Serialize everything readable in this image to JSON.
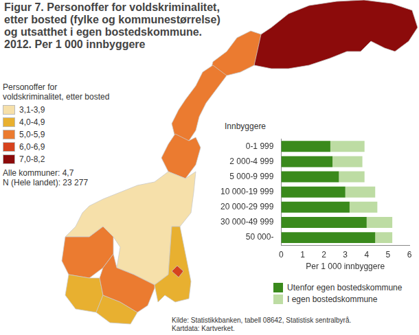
{
  "chart_data": {
    "type": "bar",
    "orientation": "horizontal",
    "stacked": true,
    "title": "Figur 7. Personoffer for voldskriminalitet,\netter bosted (fylke og kommunestørrelse)\nog utsatthet i egen bostedskommune.\n2012. Per 1 000 innbyggere",
    "y_label": "Innbyggere",
    "x_label": "Per 1 000 innbyggere",
    "categories": [
      "0-1 999",
      "2 000-4 999",
      "5 000-9 999",
      "10 000-19 999",
      "20 000-29 999",
      "30 000-49 999",
      "50 000-"
    ],
    "series": [
      {
        "name": "Utenfor egen bostedskommune",
        "color": "#3a8a1c",
        "values": [
          2.3,
          2.4,
          2.7,
          3.0,
          3.2,
          4.0,
          4.4
        ]
      },
      {
        "name": "I egen bostedskommune",
        "color": "#bddca3",
        "values": [
          1.6,
          1.4,
          1.2,
          1.4,
          1.3,
          1.2,
          0.8
        ]
      }
    ],
    "xlim": [
      0,
      6
    ],
    "xticks": [
      0,
      1,
      2,
      3,
      4,
      5,
      6
    ],
    "grid": false,
    "legend": "bottom"
  },
  "map": {
    "legend_title": "Personoffer for voldskriminalitet, etter bosted",
    "classes": [
      {
        "label": "3,1-3,9",
        "color": "#f6e0aa"
      },
      {
        "label": "4,0-4,9",
        "color": "#e8b030"
      },
      {
        "label": "5,0-5,9",
        "color": "#eb7b30"
      },
      {
        "label": "6,0-6,9",
        "color": "#d6431e"
      },
      {
        "label": "7,0-8,2",
        "color": "#8c0b0b"
      }
    ],
    "region_classes": [
      "7,0-8,2",
      "5,0-5,9",
      "5,0-5,9",
      "5,0-5,9",
      "3,1-3,9",
      "5,0-5,9",
      "4,0-4,9",
      "4,0-4,9",
      "5,0-5,9",
      "4,0-4,9",
      "6,0-6,9"
    ],
    "notes": [
      "Alle kommuner: 4,7",
      "N (Hele landet): 23 277"
    ]
  },
  "source": [
    "Kilde: Statistikkbanken, tabell 08642, Statistisk sentralbyrå.",
    "Kartdata: Kartverket."
  ]
}
